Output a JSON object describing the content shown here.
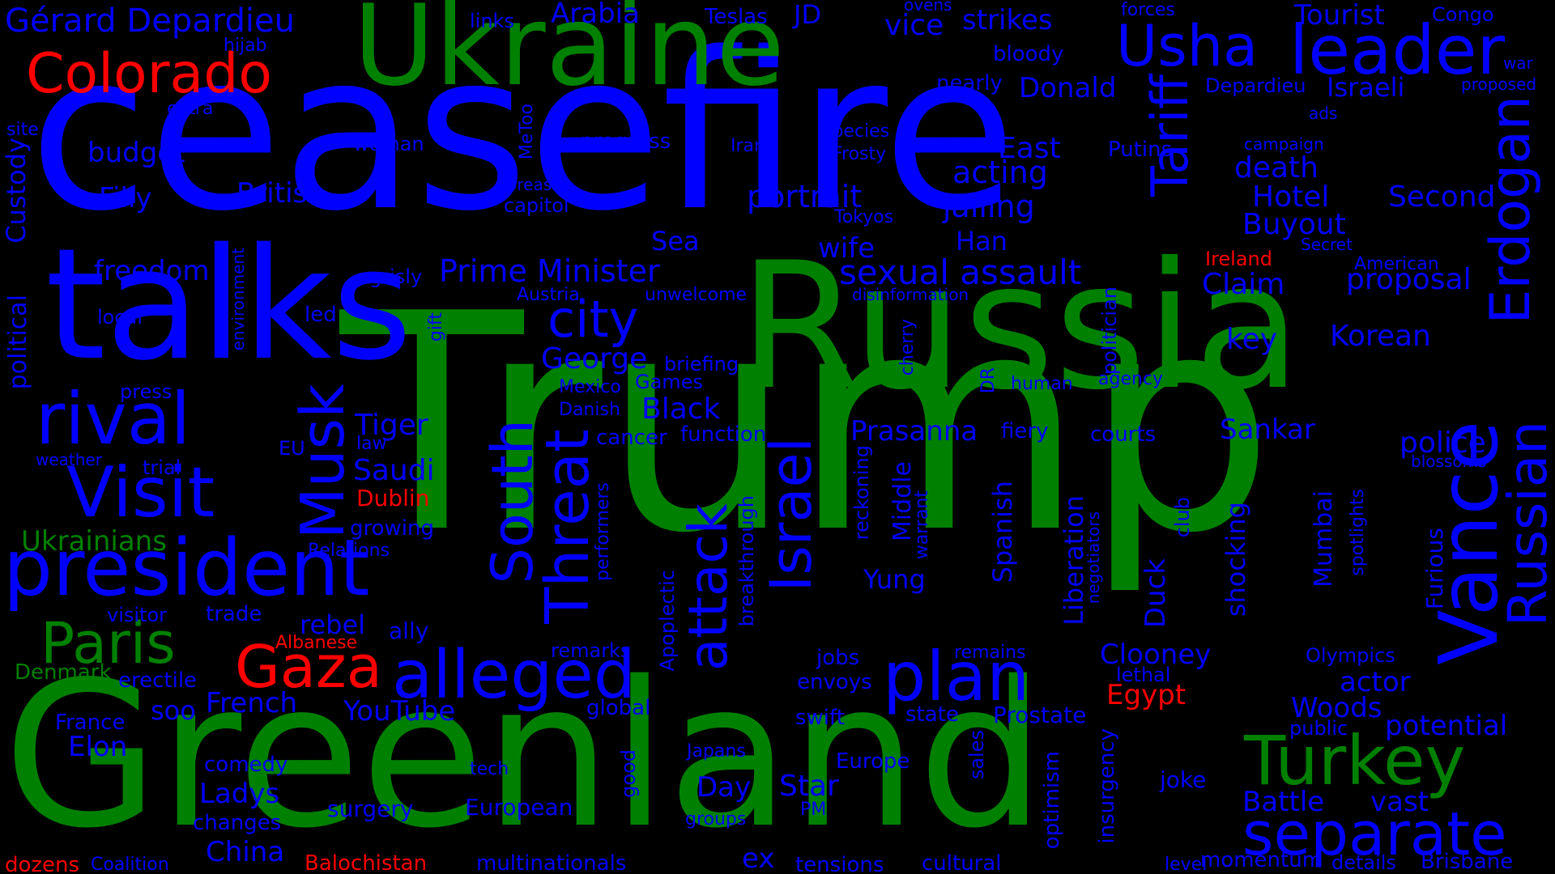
{
  "words": [
    "Trump",
    "ceasefire",
    "Greenland",
    "Russia",
    "talks",
    "Ukraine",
    "Usha",
    "leader",
    "Tariff",
    "Erdogan",
    "Vance",
    "Russian",
    "president",
    "rival",
    "Visit",
    "Musk",
    "South",
    "Threat",
    "attack",
    "Israel",
    "alleged",
    "plan",
    "separate",
    "Turkey",
    "Colorado",
    "Gaza",
    "Paris",
    "city",
    "Gérard Depardieu",
    "Prime Minister",
    "sexual assault",
    "portrait",
    "jailing",
    "acting",
    "East",
    "Hotel",
    "Second",
    "Buyout",
    "death",
    "Claim",
    "proposal",
    "Korean",
    "key",
    "police",
    "Sankar",
    "Prasanna",
    "Black",
    "George",
    "Tiger",
    "Saudi",
    "Dublin",
    "Ukrainians",
    "freedom",
    "budget",
    "Filly",
    "British",
    "Custody",
    "political",
    "local",
    "press",
    "weather",
    "trial",
    "growing",
    "Relations",
    "rebel",
    "ally",
    "visitor",
    "trade",
    "Albanese",
    "Denmark",
    "erectile",
    "soo",
    "French",
    "YouTube",
    "France",
    "Elon",
    "comedy",
    "Ladys",
    "changes",
    "surgery",
    "China",
    "dozens",
    "Coalition",
    "Balochistan",
    "multinationals",
    "European",
    "Day",
    "Star",
    "ex",
    "tensions",
    "cultural",
    "Egypt",
    "Clooney",
    "Liberation",
    "Duck",
    "shocking",
    "Mumbai",
    "Furious",
    "Olympics",
    "actor",
    "Woods",
    "potential",
    "public",
    "Battle",
    "vast",
    "Brisbane",
    "momentum",
    "details",
    "level",
    "joke",
    "insurgency",
    "optimism",
    "sales",
    "state",
    "Prostate",
    "lethal",
    "Europe",
    "PM",
    "groups",
    "Japans",
    "good",
    "tech",
    "global",
    "remarks",
    "Apoplectic",
    "breakthrough",
    "jobs",
    "envoys",
    "swift",
    "remains",
    "Middle",
    "Yung",
    "warrant",
    "reckoning",
    "fiery",
    "courts",
    "human",
    "agency",
    "politician",
    "DR",
    "cherry",
    "disinformation",
    "Ireland",
    "American",
    "Secret",
    "Spanish",
    "negotiators",
    "club",
    "spotlights",
    "blossoms",
    "Han",
    "wife",
    "Sea",
    "Games",
    "briefing",
    "Mexico",
    "Danish",
    "cancer",
    "function",
    "EU",
    "law",
    "Tokyos",
    "capitol",
    "Koreas",
    "MeToo",
    "progress",
    "woman",
    "Iran",
    "Frosty",
    "species",
    "Putins",
    "campaign",
    "ads",
    "Israeli",
    "Depardieu",
    "Donald",
    "nearly",
    "bloody",
    "strikes",
    "vice",
    "ovens",
    "forces",
    "Tourist",
    "Congo",
    "war",
    "proposed",
    "Arabia",
    "Teslas",
    "JD",
    "links",
    "hijab",
    "extra",
    "site",
    "Austria",
    "unwelcome",
    "gift",
    "environment",
    "grisly",
    "led",
    "performers"
  ]
}
